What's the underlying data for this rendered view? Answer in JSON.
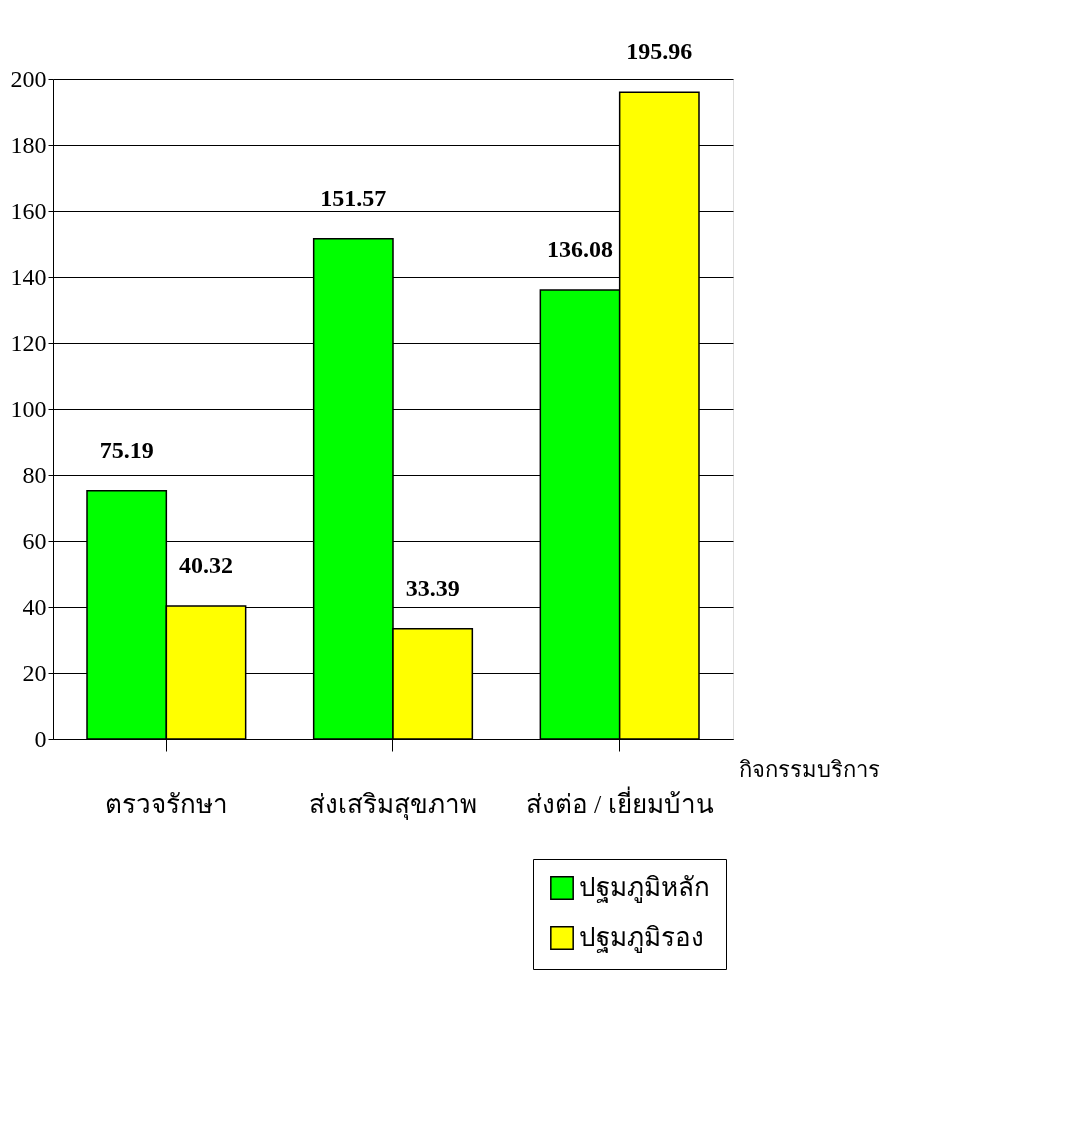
{
  "chart_data": {
    "type": "bar",
    "xlabel": "กิจกรรมบริการ",
    "categories": [
      "ตรวจรักษา",
      "ส่งเสริมสุขภาพ",
      "ส่งต่อ / เยี่ยมบ้าน"
    ],
    "series": [
      {
        "name": "ปฐมภูมิหลัก",
        "color": "#00ff00",
        "values": [
          75.19,
          151.57,
          136.08
        ]
      },
      {
        "name": "ปฐมภูมิรอง",
        "color": "#ffff00",
        "values": [
          40.32,
          33.39,
          195.96
        ]
      }
    ],
    "ylim": [
      0,
      200
    ],
    "yticks": [
      0,
      20,
      40,
      60,
      80,
      100,
      120,
      140,
      160,
      180,
      200
    ],
    "grid": "y",
    "data_labels": true,
    "legend": "bottom right"
  }
}
